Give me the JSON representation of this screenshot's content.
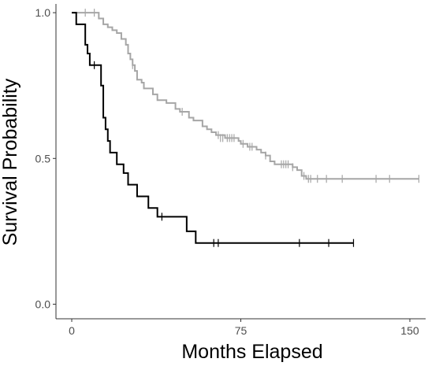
{
  "chart_data": {
    "type": "line",
    "step": true,
    "title": "",
    "xlabel": "Months Elapsed",
    "ylabel": "Survival Probability",
    "xlim": [
      -7,
      157
    ],
    "ylim": [
      -0.05,
      1.03
    ],
    "x_ticks": [
      0,
      75,
      150
    ],
    "y_ticks": [
      0.0,
      0.5,
      1.0
    ],
    "x_tick_labels": [
      "0",
      "75",
      "150"
    ],
    "y_tick_labels": [
      "0.0",
      "0.5",
      "1.0"
    ],
    "grid": false,
    "legend": "none",
    "series": [
      {
        "color": "#a6a6a6",
        "steps": [
          [
            0,
            1.0
          ],
          [
            12,
            0.98
          ],
          [
            14,
            0.96
          ],
          [
            16,
            0.95
          ],
          [
            18,
            0.94
          ],
          [
            20,
            0.93
          ],
          [
            22,
            0.91
          ],
          [
            24,
            0.89
          ],
          [
            25,
            0.86
          ],
          [
            26,
            0.84
          ],
          [
            27,
            0.82
          ],
          [
            28,
            0.8
          ],
          [
            29,
            0.77
          ],
          [
            31,
            0.76
          ],
          [
            32,
            0.74
          ],
          [
            36,
            0.72
          ],
          [
            38,
            0.7
          ],
          [
            42,
            0.69
          ],
          [
            46,
            0.67
          ],
          [
            48,
            0.66
          ],
          [
            52,
            0.64
          ],
          [
            54,
            0.63
          ],
          [
            58,
            0.61
          ],
          [
            60,
            0.6
          ],
          [
            62,
            0.59
          ],
          [
            64,
            0.58
          ],
          [
            68,
            0.57
          ],
          [
            74,
            0.56
          ],
          [
            75,
            0.55
          ],
          [
            78,
            0.54
          ],
          [
            82,
            0.53
          ],
          [
            84,
            0.52
          ],
          [
            86,
            0.51
          ],
          [
            88,
            0.49
          ],
          [
            90,
            0.48
          ],
          [
            98,
            0.47
          ],
          [
            100,
            0.46
          ],
          [
            102,
            0.44
          ],
          [
            104,
            0.43
          ]
        ],
        "end_x": 154,
        "censored": [
          [
            6,
            1.0
          ],
          [
            10,
            1.0
          ],
          [
            27,
            0.82
          ],
          [
            49,
            0.66
          ],
          [
            65,
            0.58
          ],
          [
            66,
            0.57
          ],
          [
            67,
            0.57
          ],
          [
            69,
            0.57
          ],
          [
            70,
            0.57
          ],
          [
            71,
            0.57
          ],
          [
            72,
            0.57
          ],
          [
            76,
            0.55
          ],
          [
            79,
            0.54
          ],
          [
            80,
            0.54
          ],
          [
            86,
            0.51
          ],
          [
            93,
            0.48
          ],
          [
            94,
            0.48
          ],
          [
            95,
            0.48
          ],
          [
            96,
            0.48
          ],
          [
            98,
            0.47
          ],
          [
            103,
            0.44
          ],
          [
            105,
            0.43
          ],
          [
            106,
            0.43
          ],
          [
            109,
            0.43
          ],
          [
            113,
            0.43
          ],
          [
            120,
            0.43
          ],
          [
            135,
            0.43
          ],
          [
            141,
            0.43
          ],
          [
            154,
            0.43
          ]
        ]
      },
      {
        "color": "#000000",
        "steps": [
          [
            0,
            1.0
          ],
          [
            2,
            0.96
          ],
          [
            6,
            0.89
          ],
          [
            7,
            0.86
          ],
          [
            8,
            0.82
          ],
          [
            13,
            0.75
          ],
          [
            14,
            0.64
          ],
          [
            15,
            0.6
          ],
          [
            16,
            0.56
          ],
          [
            17,
            0.52
          ],
          [
            20,
            0.48
          ],
          [
            23,
            0.45
          ],
          [
            25,
            0.41
          ],
          [
            29,
            0.37
          ],
          [
            34,
            0.33
          ],
          [
            38,
            0.3
          ],
          [
            51,
            0.25
          ],
          [
            55,
            0.21
          ]
        ],
        "end_x": 125,
        "censored": [
          [
            10,
            0.82
          ],
          [
            40,
            0.3
          ],
          [
            63,
            0.21
          ],
          [
            65,
            0.21
          ],
          [
            101,
            0.21
          ],
          [
            114,
            0.21
          ],
          [
            125,
            0.21
          ]
        ]
      }
    ]
  }
}
